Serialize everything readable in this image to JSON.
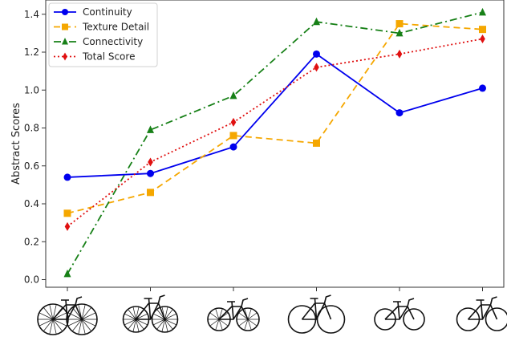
{
  "chart_data": {
    "type": "line",
    "categories": [
      "sketch-1",
      "sketch-2",
      "sketch-3",
      "sketch-4",
      "sketch-5",
      "sketch-6"
    ],
    "xlabel": "",
    "ylabel": "Abstract Scores",
    "ylim": [
      -0.05,
      1.45
    ],
    "yticks": [
      0.0,
      0.2,
      0.4,
      0.6,
      0.8,
      1.0,
      1.2,
      1.4
    ],
    "ytick_labels": [
      "0.0",
      "0.2",
      "0.4",
      "0.6",
      "0.8",
      "1.0",
      "1.2",
      "1.4"
    ],
    "grid": false,
    "legend_position": "top-left",
    "x_tick_style": "bicycle sketch images",
    "series": [
      {
        "name": "Continuity",
        "color": "#0000ee",
        "dash": "solid",
        "marker": "circle",
        "values": [
          0.54,
          0.56,
          0.7,
          1.19,
          0.88,
          1.01
        ]
      },
      {
        "name": "Texture Detail",
        "color": "#f5a700",
        "dash": "dashed",
        "marker": "square",
        "values": [
          0.35,
          0.46,
          0.76,
          0.72,
          1.35,
          1.32
        ]
      },
      {
        "name": "Connectivity",
        "color": "#178017",
        "dash": "dashdot",
        "marker": "triangle",
        "values": [
          0.03,
          0.79,
          0.97,
          1.36,
          1.3,
          1.41
        ]
      },
      {
        "name": "Total Score",
        "color": "#e01010",
        "dash": "dotted",
        "marker": "diamond",
        "values": [
          0.28,
          0.62,
          0.83,
          1.12,
          1.19,
          1.27
        ]
      }
    ]
  }
}
